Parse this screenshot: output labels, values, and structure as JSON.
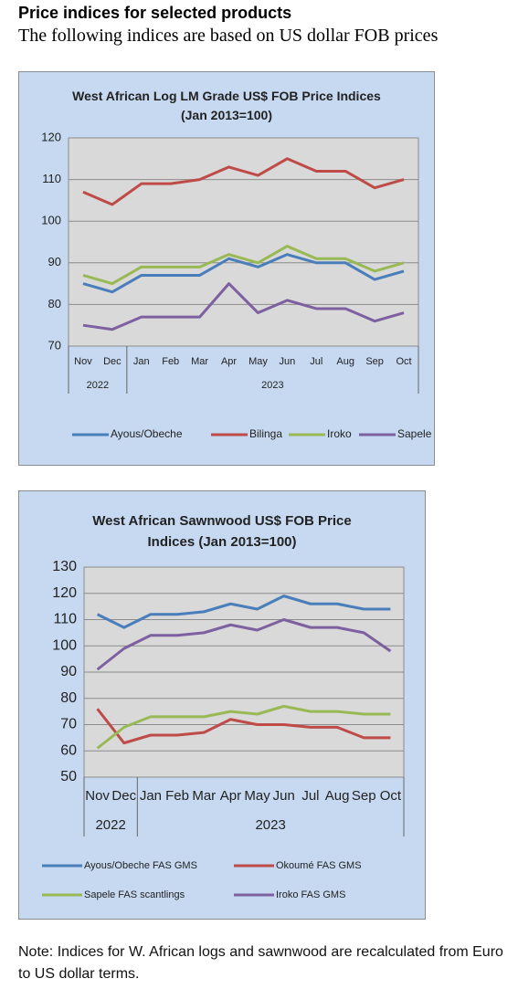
{
  "header": {
    "title": "Price indices for selected products",
    "subtitle": "The following indices are based on US dollar FOB prices"
  },
  "chart_data": [
    {
      "type": "line",
      "title": "West African Log LM Grade US$ FOB Price Indices (Jan 2013=100)",
      "categories": [
        "Nov",
        "Dec",
        "Jan",
        "Feb",
        "Mar",
        "Apr",
        "May",
        "Jun",
        "Jul",
        "Aug",
        "Sep",
        "Oct"
      ],
      "category_groups": [
        {
          "label": "2022",
          "span": 2
        },
        {
          "label": "2023",
          "span": 10
        }
      ],
      "ylim": [
        70,
        120
      ],
      "yticks": [
        70,
        80,
        90,
        100,
        110,
        120
      ],
      "grid": true,
      "legend": "bottom",
      "series": [
        {
          "name": "Ayous/Obeche",
          "color": "#4a7ebb",
          "values": [
            85,
            83,
            87,
            87,
            87,
            91,
            89,
            92,
            90,
            90,
            86,
            88
          ]
        },
        {
          "name": "Bilinga",
          "color": "#be4b48",
          "values": [
            107,
            104,
            109,
            109,
            110,
            113,
            111,
            115,
            112,
            112,
            108,
            110
          ]
        },
        {
          "name": "Iroko",
          "color": "#98b954",
          "values": [
            87,
            85,
            89,
            89,
            89,
            92,
            90,
            94,
            91,
            91,
            88,
            90
          ]
        },
        {
          "name": "Sapele",
          "color": "#7d60a0",
          "values": [
            75,
            74,
            77,
            77,
            77,
            85,
            78,
            81,
            79,
            79,
            76,
            78
          ]
        }
      ]
    },
    {
      "type": "line",
      "title": "West African Sawnwood US$ FOB Price Indices (Jan 2013=100)",
      "categories": [
        "Nov",
        "Dec",
        "Jan",
        "Feb",
        "Mar",
        "Apr",
        "May",
        "Jun",
        "Jul",
        "Aug",
        "Sep",
        "Oct"
      ],
      "category_groups": [
        {
          "label": "2022",
          "span": 2
        },
        {
          "label": "2023",
          "span": 10
        }
      ],
      "ylim": [
        50,
        130
      ],
      "yticks": [
        50,
        60,
        70,
        80,
        90,
        100,
        110,
        120,
        130
      ],
      "grid": true,
      "legend": "bottom",
      "series": [
        {
          "name": "Ayous/Obeche  FAS GMS",
          "color": "#4a7ebb",
          "values": [
            112,
            107,
            112,
            112,
            113,
            116,
            114,
            119,
            116,
            116,
            114,
            114
          ]
        },
        {
          "name": "Okoumé  FAS GMS",
          "color": "#be4b48",
          "values": [
            76,
            63,
            66,
            66,
            67,
            72,
            70,
            70,
            69,
            69,
            65,
            65
          ]
        },
        {
          "name": "Sapele FAS scantlings",
          "color": "#98b954",
          "values": [
            61,
            69,
            73,
            73,
            73,
            75,
            74,
            77,
            75,
            75,
            74,
            74
          ]
        },
        {
          "name": "Iroko FAS GMS",
          "color": "#7d60a0",
          "values": [
            91,
            99,
            104,
            104,
            105,
            108,
            106,
            110,
            107,
            107,
            105,
            98
          ]
        }
      ]
    }
  ],
  "note": "Note: Indices for W. African logs and sawnwood are recalculated from Euro to US dollar terms."
}
